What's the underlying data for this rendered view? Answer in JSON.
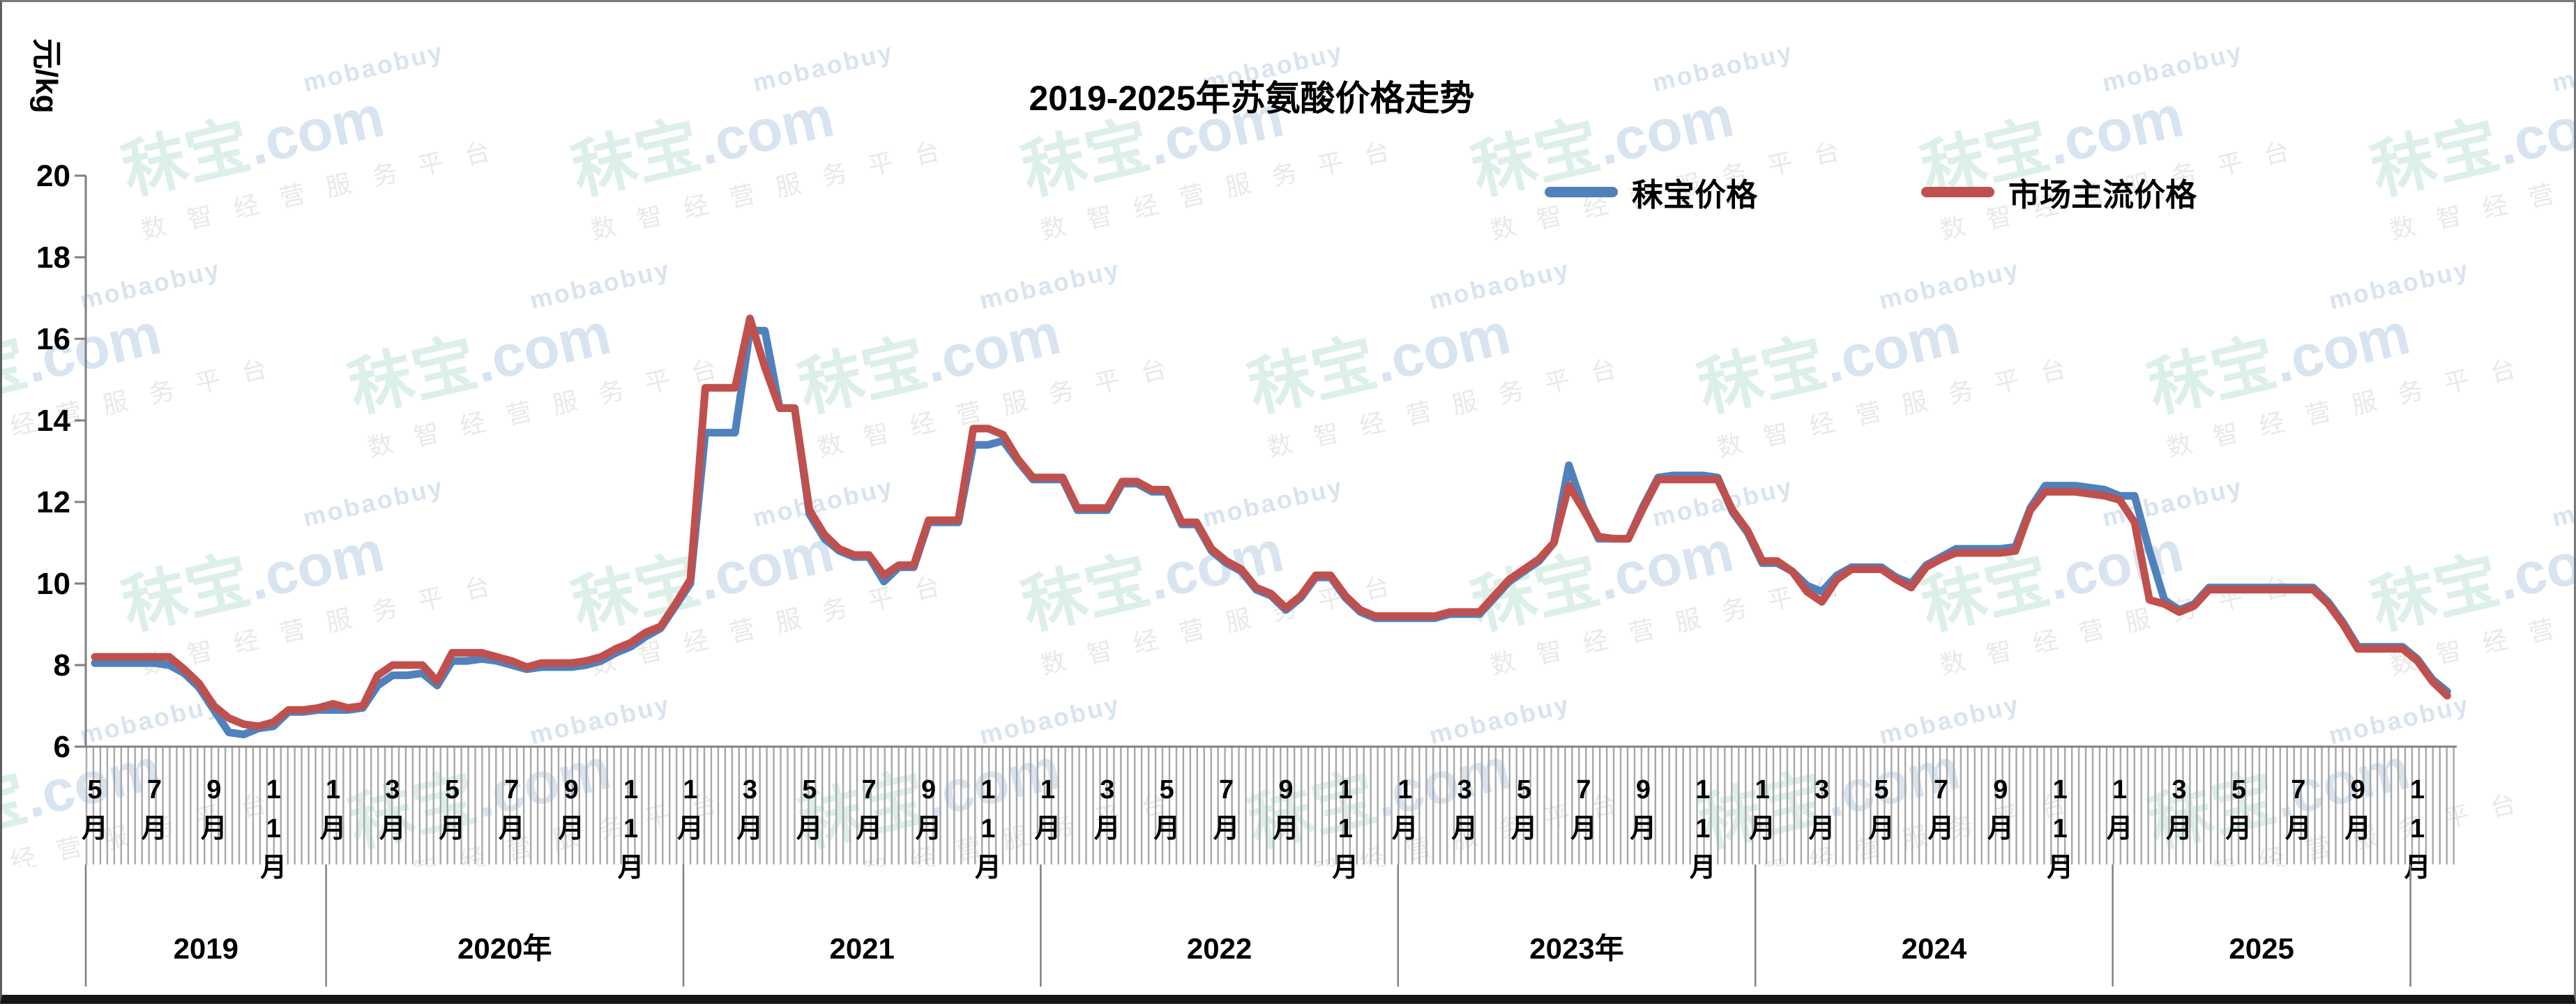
{
  "title": "2019-2025年苏氨酸价格走势",
  "y_axis": {
    "unit_label": "元/kg",
    "min": 6,
    "max": 20,
    "ticks": [
      20,
      18,
      16,
      14,
      12,
      10,
      8,
      6
    ]
  },
  "legend": [
    {
      "label": "秣宝价格",
      "color": "#4F81BD"
    },
    {
      "label": "市场主流价格",
      "color": "#C0504D"
    }
  ],
  "x_axis": {
    "month_labels": [
      "5月",
      "7月",
      "9月",
      "11月",
      "1月",
      "3月",
      "5月",
      "7月",
      "9月",
      "11月",
      "1月",
      "3月",
      "5月",
      "7月",
      "9月",
      "11月",
      "1月",
      "3月",
      "5月",
      "7月",
      "9月",
      "11月",
      "1月",
      "3月",
      "5月",
      "7月",
      "9月",
      "11月",
      "1月",
      "3月",
      "5月",
      "7月",
      "9月",
      "11月",
      "1月",
      "3月",
      "5月",
      "7月",
      "9月",
      "11月"
    ],
    "year_labels": [
      {
        "label": "2019",
        "start_month_index": 0,
        "end_month_index": 8
      },
      {
        "label": "2020年",
        "start_month_index": 8,
        "end_month_index": 20
      },
      {
        "label": "2021",
        "start_month_index": 20,
        "end_month_index": 32
      },
      {
        "label": "2022",
        "start_month_index": 32,
        "end_month_index": 44
      },
      {
        "label": "2023年",
        "start_month_index": 44,
        "end_month_index": 56
      },
      {
        "label": "2024",
        "start_month_index": 56,
        "end_month_index": 68
      },
      {
        "label": "2025",
        "start_month_index": 68,
        "end_month_index": 78
      }
    ]
  },
  "watermark": {
    "brand_cn": "秣宝",
    "brand_suffix": ".com",
    "brand_latin": "mobaobuy",
    "tagline": "数智经营服务平台"
  },
  "colors": {
    "mobao_blue": "#4F81BD",
    "market_red": "#C0504D",
    "axis_gray": "#808080",
    "tick_gray": "#A8A8A8",
    "text_black": "#000000"
  },
  "chart_data": {
    "type": "line",
    "title": "2019-2025年苏氨酸价格走势",
    "ylabel": "元/kg",
    "ylim": [
      6,
      20
    ],
    "grid": false,
    "legend_position": "top-right",
    "x_start": "2019-05",
    "x_step_months": 0.5,
    "x_unit": "months since 2019-05 (half-month sampling of weekly data)",
    "series": [
      {
        "name": "秣宝价格",
        "color": "#4F81BD",
        "values": [
          8.05,
          8.05,
          8.05,
          8.05,
          8.05,
          8.0,
          7.8,
          7.45,
          6.9,
          6.35,
          6.3,
          6.45,
          6.5,
          6.85,
          6.85,
          6.9,
          6.9,
          6.9,
          6.95,
          7.5,
          7.75,
          7.75,
          7.8,
          7.5,
          8.1,
          8.1,
          8.15,
          8.1,
          8.0,
          7.9,
          7.95,
          7.95,
          7.95,
          8.0,
          8.1,
          8.3,
          8.45,
          8.7,
          8.9,
          9.45,
          10.0,
          13.7,
          13.7,
          13.7,
          16.2,
          16.2,
          14.3,
          14.3,
          11.7,
          11.1,
          10.8,
          10.65,
          10.65,
          10.05,
          10.4,
          10.4,
          11.5,
          11.5,
          11.5,
          13.4,
          13.4,
          13.5,
          13.0,
          12.55,
          12.55,
          12.55,
          11.8,
          11.8,
          11.8,
          12.45,
          12.45,
          12.25,
          12.25,
          11.45,
          11.45,
          10.8,
          10.5,
          10.3,
          9.85,
          9.7,
          9.35,
          9.65,
          10.15,
          10.15,
          9.65,
          9.3,
          9.15,
          9.15,
          9.15,
          9.15,
          9.15,
          9.25,
          9.25,
          9.25,
          9.65,
          10.05,
          10.3,
          10.55,
          11.0,
          12.9,
          11.85,
          11.1,
          11.1,
          11.1,
          11.9,
          12.6,
          12.65,
          12.65,
          12.65,
          12.6,
          11.75,
          11.25,
          10.5,
          10.5,
          10.3,
          9.95,
          9.8,
          10.2,
          10.4,
          10.4,
          10.4,
          10.15,
          10.0,
          10.45,
          10.65,
          10.85,
          10.85,
          10.85,
          10.85,
          10.9,
          11.85,
          12.4,
          12.4,
          12.4,
          12.35,
          12.3,
          12.15,
          12.15,
          10.8,
          9.6,
          9.35,
          9.5,
          9.9,
          9.9,
          9.9,
          9.9,
          9.9,
          9.9,
          9.9,
          9.9,
          9.55,
          9.05,
          8.45,
          8.45,
          8.45,
          8.45,
          8.15,
          7.65,
          7.35
        ]
      },
      {
        "name": "市场主流价格",
        "color": "#C0504D",
        "values": [
          8.2,
          8.2,
          8.2,
          8.2,
          8.2,
          8.2,
          7.9,
          7.55,
          7.0,
          6.7,
          6.55,
          6.5,
          6.6,
          6.9,
          6.9,
          6.95,
          7.05,
          6.95,
          7.0,
          7.75,
          8.0,
          8.0,
          8.0,
          7.6,
          8.3,
          8.3,
          8.3,
          8.2,
          8.1,
          7.95,
          8.05,
          8.05,
          8.05,
          8.1,
          8.2,
          8.4,
          8.55,
          8.8,
          8.95,
          9.5,
          10.1,
          14.8,
          14.8,
          14.8,
          16.5,
          15.3,
          14.3,
          14.3,
          11.8,
          11.2,
          10.85,
          10.7,
          10.7,
          10.2,
          10.45,
          10.45,
          11.55,
          11.55,
          11.55,
          13.8,
          13.8,
          13.65,
          13.05,
          12.6,
          12.6,
          12.6,
          11.85,
          11.85,
          11.85,
          12.5,
          12.5,
          12.3,
          12.3,
          11.5,
          11.5,
          10.85,
          10.55,
          10.35,
          9.9,
          9.75,
          9.4,
          9.7,
          10.2,
          10.2,
          9.7,
          9.35,
          9.2,
          9.2,
          9.2,
          9.2,
          9.2,
          9.3,
          9.3,
          9.3,
          9.7,
          10.1,
          10.35,
          10.6,
          11.0,
          12.4,
          11.8,
          11.15,
          11.1,
          11.1,
          11.85,
          12.55,
          12.55,
          12.55,
          12.55,
          12.55,
          11.8,
          11.3,
          10.55,
          10.55,
          10.3,
          9.8,
          9.55,
          10.1,
          10.35,
          10.35,
          10.35,
          10.1,
          9.9,
          10.4,
          10.6,
          10.75,
          10.75,
          10.75,
          10.75,
          10.8,
          11.8,
          12.25,
          12.25,
          12.25,
          12.2,
          12.15,
          12.05,
          11.5,
          9.6,
          9.5,
          9.3,
          9.45,
          9.85,
          9.85,
          9.85,
          9.85,
          9.85,
          9.85,
          9.85,
          9.85,
          9.5,
          9.0,
          8.4,
          8.4,
          8.4,
          8.4,
          8.1,
          7.6,
          7.25
        ]
      }
    ]
  }
}
